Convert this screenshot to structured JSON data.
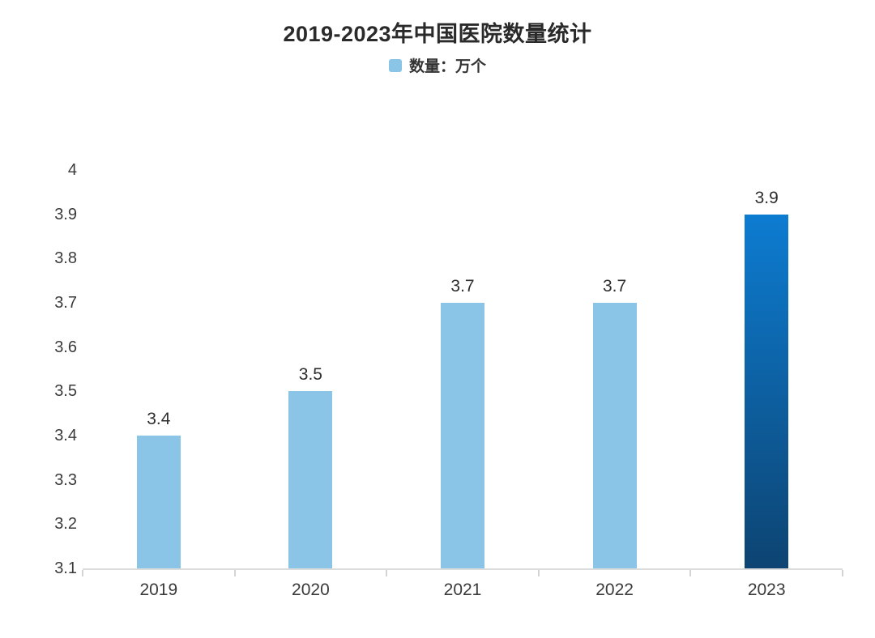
{
  "header": {
    "title": "2019-2023年中国医院数量统计"
  },
  "legend": {
    "items": [
      {
        "label": "数量：万个",
        "color": "#8ac4e6"
      }
    ]
  },
  "chart_data": {
    "type": "bar",
    "title": "2019-2023年中国医院数量统计",
    "categories": [
      "2019",
      "2020",
      "2021",
      "2022",
      "2023"
    ],
    "series": [
      {
        "name": "数量：万个",
        "values": [
          3.4,
          3.5,
          3.7,
          3.7,
          3.9
        ]
      }
    ],
    "data_labels": [
      "3.4",
      "3.5",
      "3.7",
      "3.7",
      "3.9"
    ],
    "xlabel": "",
    "ylabel": "",
    "ylim": [
      3.1,
      4.0
    ],
    "ytick_labels": [
      "3.1",
      "3.2",
      "3.3",
      "3.4",
      "3.5",
      "3.6",
      "3.7",
      "3.8",
      "3.9",
      "4"
    ],
    "grid": false,
    "legend_position": "top",
    "bar_color": "#8ac4e6",
    "highlight_index": 4,
    "highlight_gradient_top": "#0d7cd1",
    "highlight_gradient_bottom": "#0d4472",
    "axis_line_color": "#dcdcdc",
    "label_color": "#3a3a3a"
  }
}
